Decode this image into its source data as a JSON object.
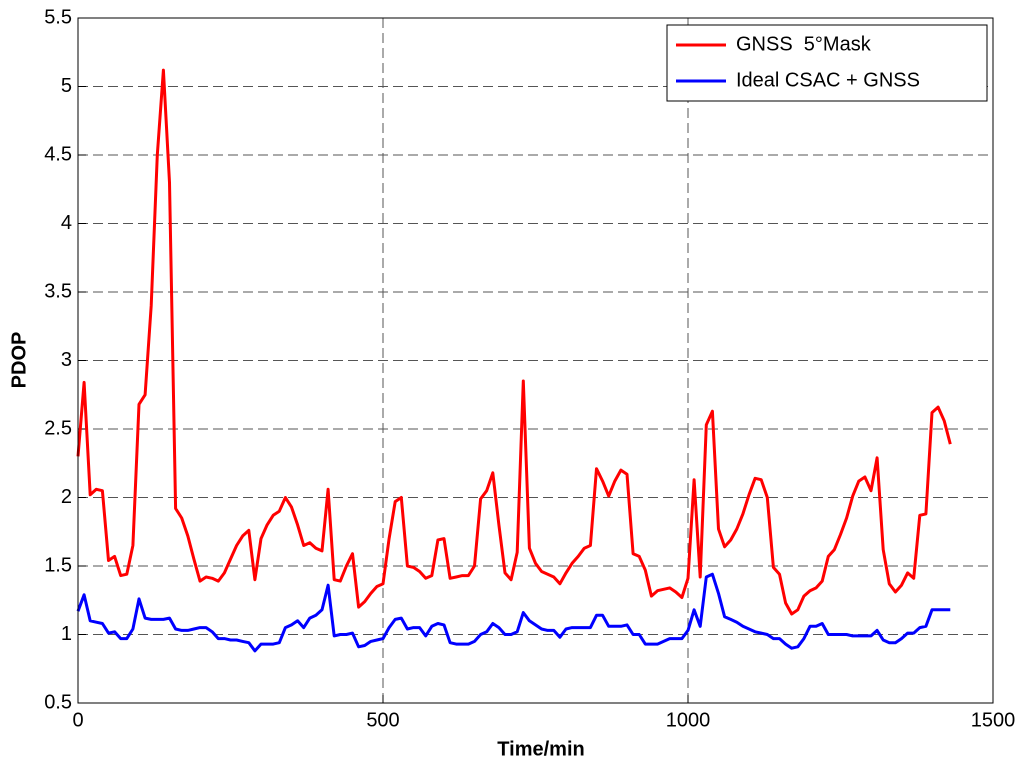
{
  "chart_data": {
    "type": "line",
    "x_label": "Time/min",
    "y_label": "PDOP",
    "xlim": [
      0,
      1500
    ],
    "xticks": [
      0,
      500,
      1000,
      1500
    ],
    "ylim": [
      0.5,
      5.5
    ],
    "yticks": [
      0.5,
      1,
      1.5,
      2,
      2.5,
      3,
      3.5,
      4,
      4.5,
      5,
      5.5
    ],
    "grid": true,
    "legend": "upper right",
    "x": [
      0,
      10,
      20,
      30,
      40,
      50,
      60,
      70,
      80,
      90,
      100,
      110,
      120,
      130,
      140,
      150,
      160,
      170,
      180,
      190,
      200,
      210,
      220,
      230,
      240,
      250,
      260,
      270,
      280,
      290,
      300,
      310,
      320,
      330,
      340,
      350,
      360,
      370,
      380,
      390,
      400,
      410,
      420,
      430,
      440,
      450,
      460,
      470,
      480,
      490,
      500,
      510,
      520,
      530,
      540,
      550,
      560,
      570,
      580,
      590,
      600,
      610,
      620,
      630,
      640,
      650,
      660,
      670,
      680,
      690,
      700,
      710,
      720,
      730,
      740,
      750,
      760,
      770,
      780,
      790,
      800,
      810,
      820,
      830,
      840,
      850,
      860,
      870,
      880,
      890,
      900,
      910,
      920,
      930,
      940,
      950,
      960,
      970,
      980,
      990,
      1000,
      1010,
      1020,
      1030,
      1040,
      1050,
      1060,
      1070,
      1080,
      1090,
      1100,
      1110,
      1120,
      1130,
      1140,
      1150,
      1160,
      1170,
      1180,
      1190,
      1200,
      1210,
      1220,
      1230,
      1240,
      1250,
      1260,
      1270,
      1280,
      1290,
      1300,
      1310,
      1320,
      1330,
      1340,
      1350,
      1360,
      1370,
      1380,
      1390,
      1400,
      1410,
      1420,
      1430
    ],
    "series": [
      {
        "name": "GNSS  5°Mask",
        "color": "#ff0000",
        "values": [
          2.3,
          2.84,
          2.02,
          2.06,
          2.05,
          1.54,
          1.57,
          1.43,
          1.44,
          1.65,
          2.68,
          2.75,
          3.4,
          4.5,
          5.12,
          4.3,
          1.92,
          1.85,
          1.72,
          1.55,
          1.39,
          1.42,
          1.41,
          1.39,
          1.45,
          1.55,
          1.65,
          1.72,
          1.76,
          1.4,
          1.7,
          1.8,
          1.87,
          1.9,
          2.0,
          1.93,
          1.8,
          1.65,
          1.67,
          1.63,
          1.61,
          2.06,
          1.4,
          1.39,
          1.5,
          1.59,
          1.2,
          1.24,
          1.3,
          1.35,
          1.37,
          1.7,
          1.97,
          2.0,
          1.5,
          1.49,
          1.46,
          1.41,
          1.43,
          1.69,
          1.7,
          1.41,
          1.42,
          1.43,
          1.43,
          1.5,
          1.99,
          2.05,
          2.18,
          1.8,
          1.45,
          1.4,
          1.6,
          2.85,
          1.63,
          1.52,
          1.46,
          1.44,
          1.42,
          1.37,
          1.45,
          1.52,
          1.57,
          1.63,
          1.65,
          2.21,
          2.12,
          2.01,
          2.12,
          2.2,
          2.17,
          1.59,
          1.57,
          1.47,
          1.28,
          1.32,
          1.33,
          1.34,
          1.31,
          1.27,
          1.41,
          2.13,
          1.42,
          2.53,
          2.63,
          1.77,
          1.64,
          1.69,
          1.77,
          1.88,
          2.02,
          2.14,
          2.13,
          2.0,
          1.49,
          1.44,
          1.23,
          1.15,
          1.18,
          1.28,
          1.32,
          1.34,
          1.39,
          1.57,
          1.62,
          1.73,
          1.85,
          2.01,
          2.12,
          2.15,
          2.05,
          2.29,
          1.62,
          1.37,
          1.31,
          1.36,
          1.45,
          1.41,
          1.87,
          1.88,
          2.62,
          2.66,
          2.56,
          2.39
        ]
      },
      {
        "name": "Ideal CSAC + GNSS",
        "color": "#0000ff",
        "values": [
          1.17,
          1.29,
          1.1,
          1.09,
          1.08,
          1.01,
          1.02,
          0.97,
          0.97,
          1.04,
          1.26,
          1.12,
          1.11,
          1.11,
          1.11,
          1.12,
          1.04,
          1.03,
          1.03,
          1.04,
          1.05,
          1.05,
          1.02,
          0.97,
          0.97,
          0.96,
          0.96,
          0.95,
          0.94,
          0.88,
          0.93,
          0.93,
          0.93,
          0.94,
          1.05,
          1.07,
          1.1,
          1.05,
          1.12,
          1.14,
          1.18,
          1.36,
          0.99,
          1.0,
          1.0,
          1.01,
          0.91,
          0.92,
          0.95,
          0.96,
          0.97,
          1.05,
          1.11,
          1.12,
          1.04,
          1.05,
          1.05,
          0.99,
          1.06,
          1.08,
          1.07,
          0.94,
          0.93,
          0.93,
          0.93,
          0.95,
          1.0,
          1.02,
          1.08,
          1.05,
          1.0,
          1.0,
          1.02,
          1.16,
          1.1,
          1.07,
          1.04,
          1.03,
          1.03,
          0.98,
          1.04,
          1.05,
          1.05,
          1.05,
          1.05,
          1.14,
          1.14,
          1.06,
          1.06,
          1.06,
          1.07,
          1.0,
          1.0,
          0.93,
          0.93,
          0.93,
          0.95,
          0.97,
          0.97,
          0.97,
          1.03,
          1.18,
          1.06,
          1.42,
          1.44,
          1.3,
          1.13,
          1.11,
          1.09,
          1.06,
          1.04,
          1.02,
          1.01,
          1.0,
          0.97,
          0.97,
          0.93,
          0.9,
          0.91,
          0.97,
          1.06,
          1.06,
          1.08,
          1.0,
          1.0,
          1.0,
          1.0,
          0.99,
          0.99,
          0.99,
          0.99,
          1.03,
          0.96,
          0.94,
          0.94,
          0.97,
          1.01,
          1.01,
          1.05,
          1.06,
          1.18,
          1.18,
          1.18,
          1.18
        ]
      }
    ]
  }
}
